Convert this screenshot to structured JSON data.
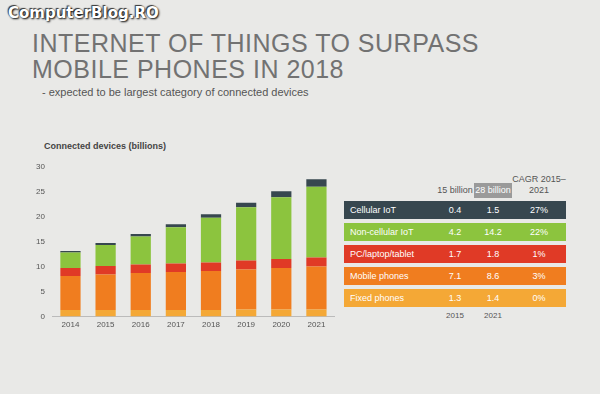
{
  "watermark": "ComputerBlog.RO",
  "chart_data": {
    "type": "bar",
    "title": "INTERNET OF THINGS TO SURPASS MOBILE PHONES IN 2018",
    "subtitle": "- expected to be largest category of connected devices",
    "ylabel": "Connected devices (billions)",
    "categories": [
      "2014",
      "2015",
      "2016",
      "2017",
      "2018",
      "2019",
      "2020",
      "2021"
    ],
    "series": [
      {
        "name": "Fixed phones",
        "color": "#f4a836",
        "values": [
          1.3,
          1.3,
          1.3,
          1.3,
          1.3,
          1.4,
          1.4,
          1.4
        ]
      },
      {
        "name": "Mobile phones",
        "color": "#f07d1f",
        "values": [
          6.8,
          7.1,
          7.4,
          7.6,
          7.8,
          8.0,
          8.3,
          8.6
        ]
      },
      {
        "name": "PC/laptop/tablet",
        "color": "#e03a26",
        "values": [
          1.6,
          1.7,
          1.7,
          1.7,
          1.7,
          1.8,
          1.8,
          1.8
        ]
      },
      {
        "name": "Non-cellular IoT",
        "color": "#8cc43e",
        "values": [
          3.1,
          4.2,
          5.6,
          7.3,
          9.0,
          10.7,
          12.4,
          14.2
        ]
      },
      {
        "name": "Cellular IoT",
        "color": "#37474f",
        "values": [
          0.3,
          0.4,
          0.5,
          0.6,
          0.7,
          0.9,
          1.2,
          1.5
        ]
      }
    ],
    "stacked": true,
    "ylim": [
      0,
      30
    ],
    "yticks": [
      0,
      5,
      10,
      15,
      20,
      25,
      30
    ],
    "grid": false
  },
  "table": {
    "header": [
      "15 billion",
      "28 billion",
      "CAGR 2015–2021"
    ],
    "rows": [
      [
        "Cellular IoT",
        "0.4",
        "1.5",
        "27%"
      ],
      [
        "Non-cellular IoT",
        "4.2",
        "14.2",
        "22%"
      ],
      [
        "PC/laptop/tablet",
        "1.7",
        "1.8",
        "1%"
      ],
      [
        "Mobile phones",
        "7.1",
        "8.6",
        "3%"
      ],
      [
        "Fixed phones",
        "1.3",
        "1.4",
        "0%"
      ]
    ],
    "footer": [
      "2015",
      "2021"
    ]
  }
}
